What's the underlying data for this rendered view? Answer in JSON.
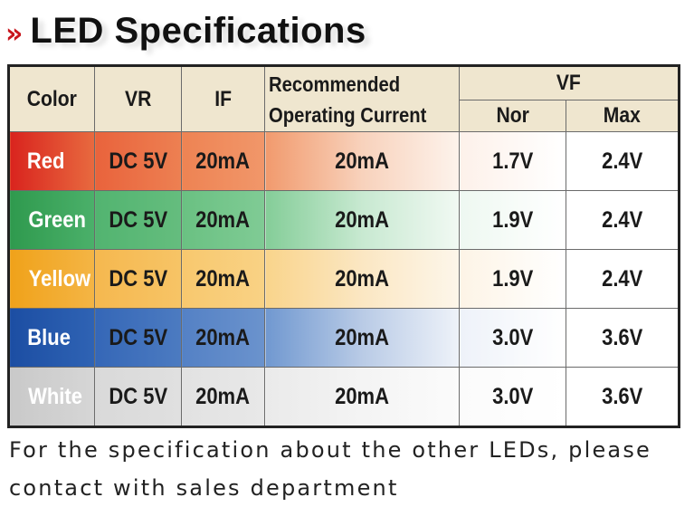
{
  "title": {
    "marker": "»",
    "text": "LED Specifications"
  },
  "table": {
    "headers": {
      "color": "Color",
      "vr": "VR",
      "if": "IF",
      "recommended_line1": "Recommended",
      "recommended_line2": "Operating Current",
      "vf": "VF",
      "nor": "Nor",
      "max": "Max"
    },
    "rows": [
      {
        "color": "Red",
        "vr": "DC 5V",
        "if": "20mA",
        "rec": "20mA",
        "nor": "1.7V",
        "max": "2.4V",
        "accent": "#d9241e"
      },
      {
        "color": "Green",
        "vr": "DC 5V",
        "if": "20mA",
        "rec": "20mA",
        "nor": "1.9V",
        "max": "2.4V",
        "accent": "#2f9a4e"
      },
      {
        "color": "Yellow",
        "vr": "DC 5V",
        "if": "20mA",
        "rec": "20mA",
        "nor": "1.9V",
        "max": "2.4V",
        "accent": "#f0a21a"
      },
      {
        "color": "Blue",
        "vr": "DC 5V",
        "if": "20mA",
        "rec": "20mA",
        "nor": "3.0V",
        "max": "3.6V",
        "accent": "#1c4ea3"
      },
      {
        "color": "White",
        "vr": "DC 5V",
        "if": "20mA",
        "rec": "20mA",
        "nor": "3.0V",
        "max": "3.6V",
        "accent": "#c9c9c9"
      }
    ]
  },
  "footer": {
    "line1": "For the specification about the other LEDs, please",
    "line2": "contact with sales department"
  },
  "colors": {
    "header_bg": "#efe6cf",
    "title_marker": "#c8161d"
  }
}
